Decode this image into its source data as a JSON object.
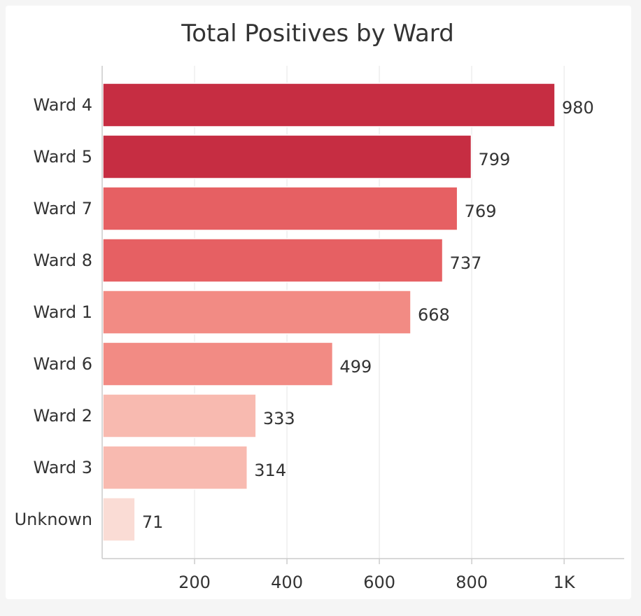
{
  "chart_data": {
    "type": "bar",
    "orientation": "horizontal",
    "title": "Total Positives by Ward",
    "xlabel": "",
    "ylabel": "",
    "categories": [
      "Ward 4",
      "Ward 5",
      "Ward 7",
      "Ward 8",
      "Ward 1",
      "Ward 6",
      "Ward 2",
      "Ward 3",
      "Unknown"
    ],
    "values": [
      980,
      799,
      769,
      737,
      668,
      499,
      333,
      314,
      71
    ],
    "colors": [
      "#c62d42",
      "#c62d42",
      "#e66063",
      "#e66063",
      "#f28b84",
      "#f28b84",
      "#f8bab0",
      "#f8bab0",
      "#fadcd5"
    ],
    "xlim": [
      0,
      1130
    ],
    "x_ticks": [
      200,
      400,
      600,
      800,
      1000
    ],
    "x_tick_labels": [
      "200",
      "400",
      "600",
      "800",
      "1K"
    ],
    "grid": true,
    "data_labels": true
  }
}
